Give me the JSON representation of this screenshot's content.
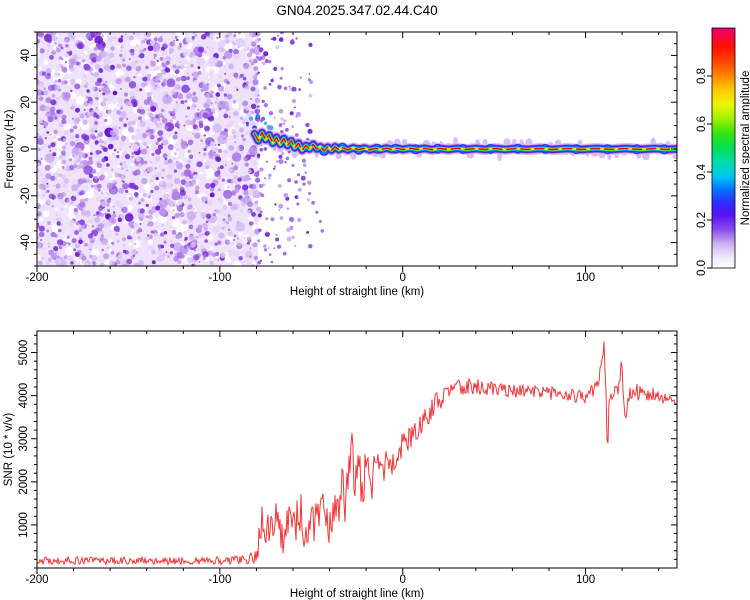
{
  "title": "GN04.2025.347.02.44.C40",
  "chart_data": [
    {
      "type": "heatmap",
      "subtype": "radio-occultation-spectrogram",
      "xlabel": "Height of straight line (km)",
      "ylabel": "Frequency (Hz)",
      "xlim": [
        -200,
        150
      ],
      "ylim": [
        -50,
        50
      ],
      "xticks": [
        -200,
        -100,
        0,
        100
      ],
      "xminor_step": 20,
      "yticks": [
        40,
        20,
        0,
        -20,
        -40
      ],
      "yminor_step": 5,
      "colorbar": {
        "label": "Normalized spectral amplitude",
        "ticks": [
          "0.0",
          "0.2",
          "0.4",
          "0.6",
          "0.8"
        ],
        "tick_values": [
          0.0,
          0.2,
          0.4,
          0.6,
          0.8
        ],
        "range": [
          0,
          1
        ],
        "stops": [
          [
            0.0,
            "#ffffff"
          ],
          [
            0.04,
            "#f3ecfb"
          ],
          [
            0.1,
            "#cdb2f2"
          ],
          [
            0.16,
            "#8a4df0"
          ],
          [
            0.22,
            "#5912f5"
          ],
          [
            0.27,
            "#2f2bff"
          ],
          [
            0.33,
            "#0077ff"
          ],
          [
            0.38,
            "#00c4f0"
          ],
          [
            0.44,
            "#00ddb0"
          ],
          [
            0.5,
            "#00e055"
          ],
          [
            0.56,
            "#33e310"
          ],
          [
            0.62,
            "#9cf000"
          ],
          [
            0.68,
            "#eaf800"
          ],
          [
            0.74,
            "#ffcc00"
          ],
          [
            0.8,
            "#ff8800"
          ],
          [
            0.86,
            "#ff4400"
          ],
          [
            0.92,
            "#ff1100"
          ],
          [
            1.0,
            "#ec0075"
          ]
        ]
      },
      "noise_field": {
        "dense_end_km": -79,
        "sparse_end_km": -50,
        "background": "#efe2fb",
        "palette": [
          "#e3d2f8",
          "#d0b4f3",
          "#bb93ec",
          "#a472e4",
          "#8c4ede",
          "#762bd6",
          "#6812cf"
        ]
      },
      "signal_trace": {
        "colors_outer_to_inner": [
          [
            "#d9bff4",
            11
          ],
          [
            "#a066e8",
            8.5
          ],
          [
            "#5a18d9",
            7
          ],
          [
            "#2a2aff",
            5.5
          ],
          [
            "#00b4f0",
            4.2
          ],
          [
            "#00e07a",
            3.2
          ],
          [
            "#d8f000",
            2.2
          ]
        ],
        "core_color": "#f00020",
        "points": [
          [
            -81,
            6.5
          ],
          [
            -79,
            3.5
          ],
          [
            -77,
            7
          ],
          [
            -75,
            4
          ],
          [
            -73,
            6
          ],
          [
            -71,
            2.5
          ],
          [
            -69,
            5
          ],
          [
            -67,
            2
          ],
          [
            -65,
            4.5
          ],
          [
            -63,
            1.5
          ],
          [
            -61,
            3.5
          ],
          [
            -59,
            0.5
          ],
          [
            -57,
            2.5
          ],
          [
            -55,
            -0.5
          ],
          [
            -53,
            1.5
          ],
          [
            -51,
            0
          ],
          [
            -49,
            2
          ],
          [
            -47,
            0
          ],
          [
            -45,
            1
          ],
          [
            -43,
            -0.8
          ],
          [
            -41,
            0.8
          ],
          [
            -39,
            -0.5
          ],
          [
            -37,
            1
          ],
          [
            -35,
            -0.3
          ],
          [
            -33,
            0.6
          ],
          [
            -30,
            -0.4
          ],
          [
            -27,
            0.5
          ],
          [
            -24,
            -0.3
          ],
          [
            -21,
            0.4
          ],
          [
            -18,
            -0.4
          ],
          [
            -15,
            0.3
          ],
          [
            -12,
            -0.3
          ],
          [
            -9,
            0.4
          ],
          [
            -6,
            -0.2
          ],
          [
            -3,
            0.3
          ],
          [
            0,
            -0.2
          ],
          [
            4,
            0.3
          ],
          [
            8,
            -0.2
          ],
          [
            12,
            0.3
          ],
          [
            16,
            -0.3
          ],
          [
            20,
            0.2
          ],
          [
            25,
            -0.2
          ],
          [
            30,
            0.3
          ],
          [
            35,
            -0.2
          ],
          [
            40,
            0.2
          ],
          [
            45,
            -0.2
          ],
          [
            50,
            0.2
          ],
          [
            56,
            -0.2
          ],
          [
            62,
            0.2
          ],
          [
            68,
            -0.2
          ],
          [
            75,
            0.2
          ],
          [
            82,
            -0.2
          ],
          [
            90,
            0.2
          ],
          [
            98,
            -0.2
          ],
          [
            106,
            0.2
          ],
          [
            114,
            -0.2
          ],
          [
            122,
            0.2
          ],
          [
            130,
            -0.2
          ],
          [
            138,
            0.2
          ],
          [
            144,
            -0.2
          ],
          [
            150,
            0
          ]
        ],
        "bumps_km": [
          -52,
          -43,
          -33,
          -24,
          -14,
          -4,
          7,
          19,
          33,
          48,
          63,
          78,
          95,
          112,
          128,
          143
        ],
        "entry_dots": [
          [
            -85,
            11
          ],
          [
            -83,
            13
          ],
          [
            -81,
            9
          ],
          [
            -79,
            14
          ],
          [
            -77,
            8
          ],
          [
            -75,
            11
          ],
          [
            -73,
            6
          ],
          [
            -80,
            5
          ],
          [
            -76,
            3
          ],
          [
            -72,
            9
          ]
        ],
        "descending_branch": [
          [
            -63,
            -4
          ],
          [
            -60,
            -7
          ],
          [
            -57,
            -11
          ],
          [
            -54,
            -15
          ],
          [
            -51,
            -19
          ],
          [
            -49,
            -23
          ],
          [
            -47,
            -27
          ],
          [
            -45,
            -31
          ],
          [
            -44,
            -35
          ],
          [
            -58,
            6
          ],
          [
            -52,
            4
          ]
        ]
      }
    },
    {
      "type": "line",
      "xlabel": "Height of straight line (km)",
      "ylabel": "SNR (10 * v/v)",
      "xlim": [
        -200,
        150
      ],
      "ylim": [
        0,
        5500
      ],
      "xticks": [
        -200,
        -100,
        0,
        100
      ],
      "xminor_step": 20,
      "yticks": [
        1000,
        2000,
        3000,
        4000,
        5000
      ],
      "yminor_step": 200,
      "series": [
        {
          "name": "SNR",
          "color": "#f23636",
          "envelope_km_mean_spread": [
            [
              -200,
              170,
              90
            ],
            [
              -120,
              170,
              90
            ],
            [
              -86,
              180,
              100
            ],
            [
              -81,
              260,
              170
            ],
            [
              -78,
              700,
              450
            ],
            [
              -75,
              1300,
              800
            ],
            [
              -73,
              700,
              400
            ],
            [
              -70,
              1500,
              700
            ],
            [
              -68,
              850,
              500
            ],
            [
              -65,
              600,
              350
            ],
            [
              -62,
              1150,
              650
            ],
            [
              -59,
              800,
              450
            ],
            [
              -57,
              1500,
              600
            ],
            [
              -55,
              1000,
              550
            ],
            [
              -52,
              700,
              400
            ],
            [
              -50,
              1300,
              600
            ],
            [
              -47,
              950,
              500
            ],
            [
              -45,
              1700,
              650
            ],
            [
              -43,
              1200,
              500
            ],
            [
              -40,
              850,
              500
            ],
            [
              -38,
              1600,
              700
            ],
            [
              -35,
              1150,
              550
            ],
            [
              -33,
              2100,
              900
            ],
            [
              -31,
              1400,
              600
            ],
            [
              -28,
              2900,
              600
            ],
            [
              -26,
              1800,
              550
            ],
            [
              -24,
              2300,
              500
            ],
            [
              -22,
              1750,
              500
            ],
            [
              -20,
              2350,
              500
            ],
            [
              -17,
              2000,
              450
            ],
            [
              -14,
              2550,
              450
            ],
            [
              -11,
              2150,
              400
            ],
            [
              -9,
              2650,
              400
            ],
            [
              -6,
              2350,
              350
            ],
            [
              -3,
              2750,
              350
            ],
            [
              0,
              2850,
              350
            ],
            [
              4,
              3050,
              320
            ],
            [
              8,
              3250,
              300
            ],
            [
              12,
              3500,
              280
            ],
            [
              16,
              3700,
              260
            ],
            [
              20,
              3900,
              240
            ],
            [
              25,
              4050,
              220
            ],
            [
              30,
              4150,
              210
            ],
            [
              36,
              4220,
              190
            ],
            [
              42,
              4200,
              180
            ],
            [
              50,
              4150,
              170
            ],
            [
              60,
              4120,
              170
            ],
            [
              70,
              4100,
              160
            ],
            [
              80,
              4050,
              160
            ],
            [
              90,
              4020,
              150
            ],
            [
              100,
              3980,
              160
            ],
            [
              104,
              4080,
              180
            ],
            [
              107,
              4250,
              250
            ],
            [
              109,
              4800,
              250
            ],
            [
              110,
              5350,
              120
            ],
            [
              111,
              4100,
              350
            ],
            [
              112,
              2580,
              180
            ],
            [
              113,
              3900,
              350
            ],
            [
              115,
              4050,
              220
            ],
            [
              117,
              4100,
              220
            ],
            [
              119,
              4500,
              250
            ],
            [
              120,
              4750,
              180
            ],
            [
              121,
              3700,
              280
            ],
            [
              122,
              3350,
              200
            ],
            [
              124,
              4050,
              220
            ],
            [
              127,
              4100,
              200
            ],
            [
              132,
              4050,
              180
            ],
            [
              138,
              4000,
              170
            ],
            [
              144,
              3950,
              170
            ],
            [
              150,
              3920,
              160
            ]
          ]
        }
      ]
    }
  ]
}
